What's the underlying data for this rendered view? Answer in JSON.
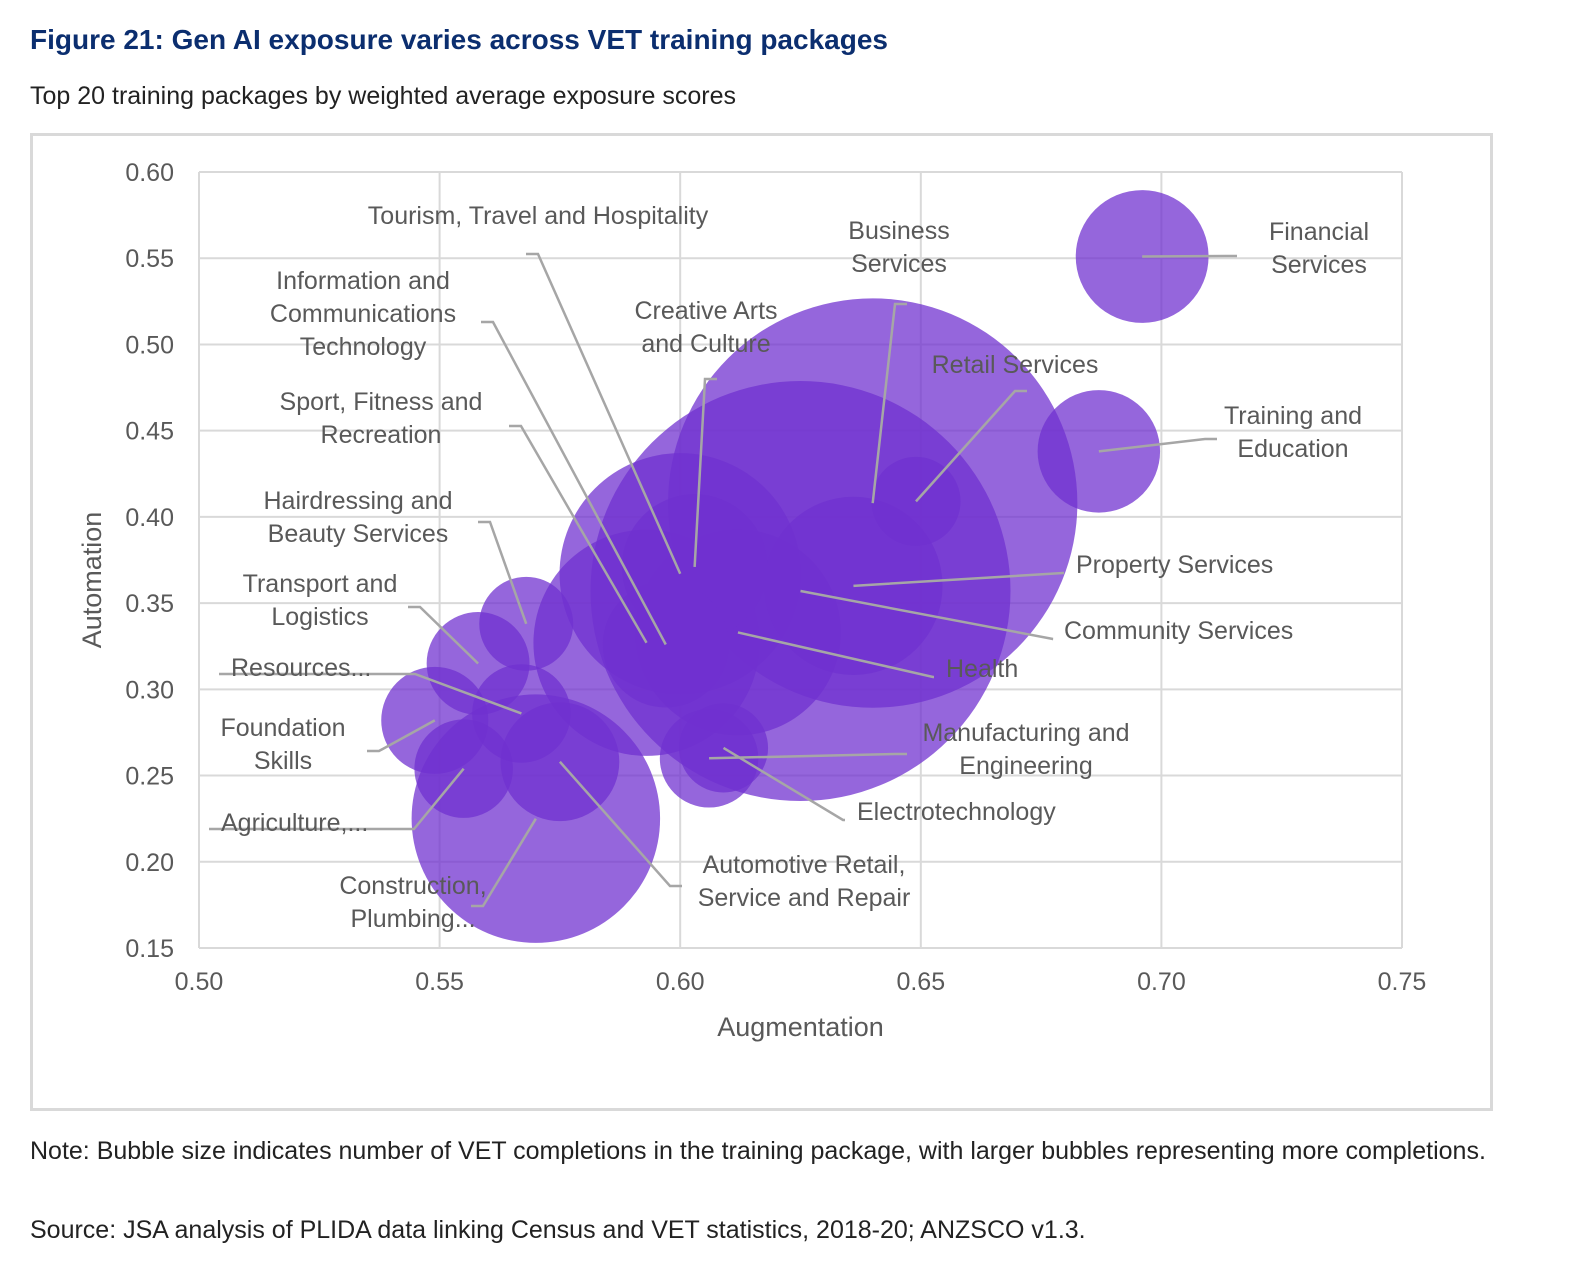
{
  "title": "Figure 21: Gen AI exposure varies across VET training packages",
  "subtitle": "Top 20 training packages by weighted average exposure scores",
  "note": "Note: Bubble size indicates number of VET completions in the training package, with larger bubbles representing more completions.",
  "source": "Source: JSA analysis of PLIDA data linking Census and VET statistics, 2018-20; ANZSCO v1.3.",
  "colors": {
    "bubble": "#7030d0",
    "leader": "#a6a6a6",
    "grid": "#d9d9d9",
    "text": "#595959"
  },
  "chart_data": {
    "type": "bubble",
    "xlabel": "Augmentation",
    "ylabel": "Automation",
    "xlim": [
      0.5,
      0.75
    ],
    "ylim": [
      0.15,
      0.6
    ],
    "xticks": [
      "0.50",
      "0.55",
      "0.60",
      "0.65",
      "0.70",
      "0.75"
    ],
    "yticks": [
      "0.60",
      "0.55",
      "0.50",
      "0.45",
      "0.40",
      "0.35",
      "0.30",
      "0.25",
      "0.20",
      "0.15"
    ],
    "grid": true,
    "points": [
      {
        "name": "Community Services",
        "label_lines": [
          "Community  Services"
        ],
        "x": 0.625,
        "y": 0.357,
        "size": 100
      },
      {
        "name": "Business Services",
        "label_lines": [
          "Business",
          "Services"
        ],
        "x": 0.64,
        "y": 0.408,
        "size": 95
      },
      {
        "name": "Construction, Plumbing...",
        "label_lines": [
          "Construction,",
          "Plumbing..."
        ],
        "x": 0.57,
        "y": 0.225,
        "size": 35
      },
      {
        "name": "Tourism, Travel and Hospitality",
        "label_lines": [
          "Tourism, Travel and Hospitality"
        ],
        "x": 0.6,
        "y": 0.367,
        "size": 33
      },
      {
        "name": "Sport, Fitness and Recreation",
        "label_lines": [
          "Sport, Fitness and",
          "Recreation"
        ],
        "x": 0.593,
        "y": 0.327,
        "size": 29
      },
      {
        "name": "Health",
        "label_lines": [
          "Health"
        ],
        "x": 0.612,
        "y": 0.333,
        "size": 24
      },
      {
        "name": "Property Services",
        "label_lines": [
          "Property Services"
        ],
        "x": 0.636,
        "y": 0.36,
        "size": 18
      },
      {
        "name": "Creative Arts and Culture",
        "label_lines": [
          "Creative Arts",
          "and Culture"
        ],
        "x": 0.603,
        "y": 0.371,
        "size": 12
      },
      {
        "name": "Financial Services",
        "label_lines": [
          "Financial",
          "Services"
        ],
        "x": 0.696,
        "y": 0.551,
        "size": 10
      },
      {
        "name": "Information and Communications Technology",
        "label_lines": [
          "Information  and",
          "Communications",
          "Technology"
        ],
        "x": 0.597,
        "y": 0.326,
        "size": 9
      },
      {
        "name": "Training and Education",
        "label_lines": [
          "Training and",
          "Education"
        ],
        "x": 0.687,
        "y": 0.438,
        "size": 8.5
      },
      {
        "name": "Automotive Retail, Service and Repair",
        "label_lines": [
          "Automotive  Retail,",
          "Service and Repair"
        ],
        "x": 0.575,
        "y": 0.258,
        "size": 8
      },
      {
        "name": "Foundation Skills",
        "label_lines": [
          "Foundation",
          "Skills"
        ],
        "x": 0.549,
        "y": 0.282,
        "size": 6.5
      },
      {
        "name": "Transport and Logistics",
        "label_lines": [
          "Transport and",
          "Logistics"
        ],
        "x": 0.558,
        "y": 0.315,
        "size": 6
      },
      {
        "name": "Resources...",
        "label_lines": [
          "Resources..."
        ],
        "x": 0.567,
        "y": 0.286,
        "size": 5.5
      },
      {
        "name": "Agriculture,...",
        "label_lines": [
          "Agriculture,..."
        ],
        "x": 0.555,
        "y": 0.254,
        "size": 5.5
      },
      {
        "name": "Manufacturing and Engineering",
        "label_lines": [
          "Manufacturing and",
          "Engineering"
        ],
        "x": 0.606,
        "y": 0.26,
        "size": 5.5
      },
      {
        "name": "Hairdressing and Beauty Services",
        "label_lines": [
          "Hairdressing and",
          "Beauty Services"
        ],
        "x": 0.568,
        "y": 0.338,
        "size": 5
      },
      {
        "name": "Retail Services",
        "label_lines": [
          "Retail Services"
        ],
        "x": 0.649,
        "y": 0.409,
        "size": 4.5
      },
      {
        "name": "Electrotechnology",
        "label_lines": [
          "Electrotechnology"
        ],
        "x": 0.609,
        "y": 0.266,
        "size": 4.5
      }
    ]
  }
}
